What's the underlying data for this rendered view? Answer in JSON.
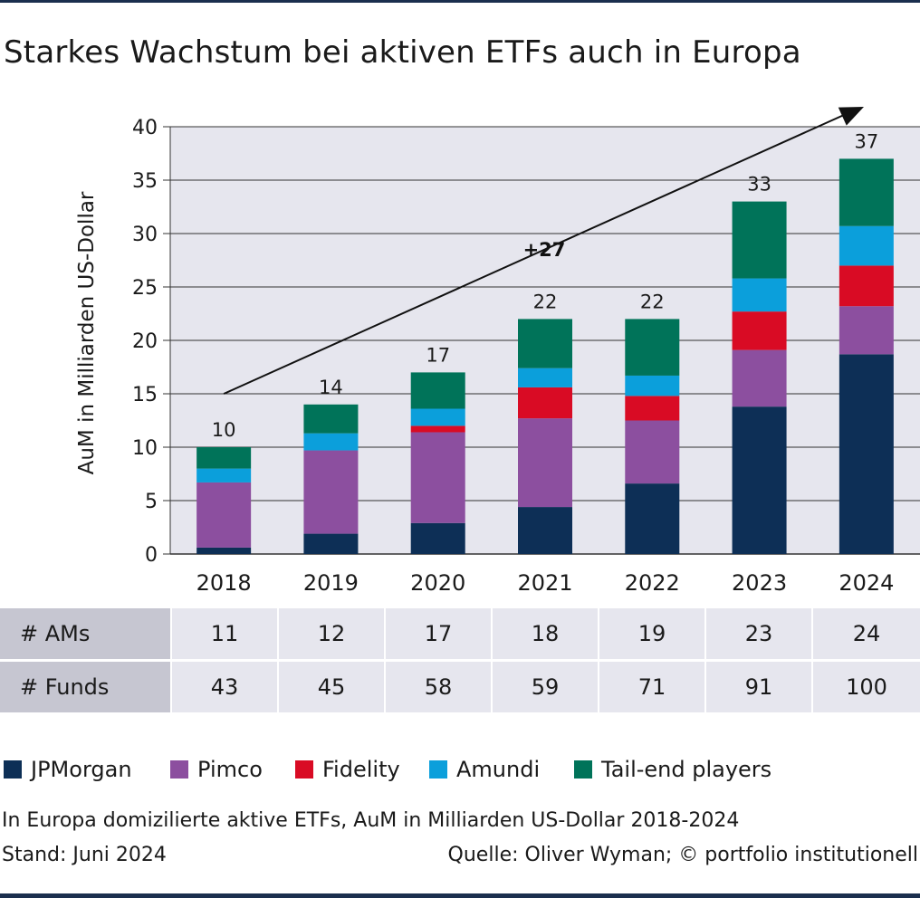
{
  "title": "Starkes Wachstum bei aktiven ETFs auch in Europa",
  "chart_data": {
    "type": "bar",
    "stacked": true,
    "categories": [
      "2018",
      "2019",
      "2020",
      "2021",
      "2022",
      "2023",
      "2024"
    ],
    "series": [
      {
        "name": "JPMorgan",
        "color": "#0d2f56",
        "values": [
          0.6,
          1.9,
          2.9,
          4.4,
          6.6,
          13.8,
          18.7
        ]
      },
      {
        "name": "Pimco",
        "color": "#8c4f9f",
        "values": [
          6.1,
          7.8,
          8.5,
          8.3,
          5.9,
          5.3,
          4.5
        ]
      },
      {
        "name": "Fidelity",
        "color": "#d90b24",
        "values": [
          0,
          0,
          0.6,
          2.9,
          2.3,
          3.6,
          3.8
        ]
      },
      {
        "name": "Amundi",
        "color": "#0b9fdb",
        "values": [
          1.3,
          1.6,
          1.6,
          1.8,
          1.9,
          3.1,
          3.7
        ]
      },
      {
        "name": "Tail-end players",
        "color": "#007359",
        "values": [
          2.0,
          2.7,
          3.4,
          4.6,
          5.3,
          7.2,
          6.3
        ]
      }
    ],
    "totals": [
      "10",
      "14",
      "17",
      "22",
      "22",
      "33",
      "37"
    ],
    "ylabel": "AuM in Milliarden US-Dollar",
    "ylim": [
      0,
      40
    ],
    "yticks": [
      0,
      5,
      10,
      15,
      20,
      25,
      30,
      35,
      40
    ],
    "grid": true,
    "trend_label": "+27",
    "trend_from": {
      "x": "2018",
      "y": 15
    },
    "legend_position": "bottom"
  },
  "table": {
    "rows": [
      {
        "label": "# AMs",
        "values": [
          "11",
          "12",
          "17",
          "18",
          "19",
          "23",
          "24"
        ]
      },
      {
        "label": "# Funds",
        "values": [
          "43",
          "45",
          "58",
          "59",
          "71",
          "91",
          "100"
        ]
      }
    ]
  },
  "footnote": "In Europa domizilierte aktive ETFs, AuM in Milliarden US-Dollar 2018-2024",
  "stand": "Stand: Juni 2024",
  "source": "Quelle: Oliver Wyman; © portfolio institutionell"
}
